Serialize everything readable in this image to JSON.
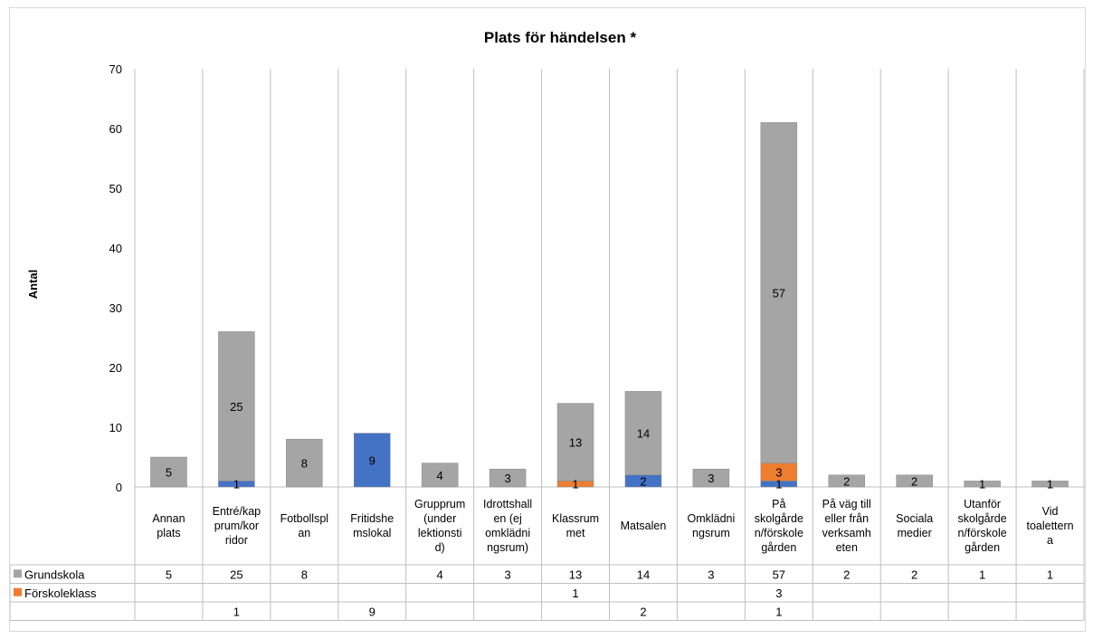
{
  "chart_data": {
    "type": "bar",
    "stacked": true,
    "title": "Plats för händelsen *",
    "ylabel": "Antal",
    "ylim": [
      0,
      70
    ],
    "yticks": [
      0,
      10,
      20,
      30,
      40,
      50,
      60,
      70
    ],
    "grid": "vertical",
    "legend": "data-table",
    "categories": [
      [
        "Annan",
        "plats"
      ],
      [
        "Entré/kap",
        "prum/kor",
        "ridor"
      ],
      [
        "Fotbollspl",
        "an"
      ],
      [
        "Fritidshe",
        "mslokal"
      ],
      [
        "Grupprum",
        "(under",
        "lektionsti",
        "d)"
      ],
      [
        "Idrottshall",
        "en (ej",
        "omklädni",
        "ngsrum)"
      ],
      [
        "Klassrum",
        "met"
      ],
      [
        "Matsalen"
      ],
      [
        "Omklädni",
        "ngsrum"
      ],
      [
        "På",
        "skolgårde",
        "n/förskole",
        "gården"
      ],
      [
        "På väg till",
        "eller från",
        "verksamh",
        "eten"
      ],
      [
        "Sociala",
        "medier"
      ],
      [
        "Utanför",
        "skolgårde",
        "n/förskole",
        "gården"
      ],
      [
        "Vid",
        "toalettern",
        "a"
      ]
    ],
    "series": [
      {
        "values": [
          null,
          1,
          null,
          9,
          null,
          null,
          null,
          2,
          null,
          1,
          null,
          null,
          null,
          null
        ],
        "color": "#4472c4"
      },
      {
        "name": "Förskoleklass",
        "values": [
          null,
          null,
          null,
          null,
          null,
          null,
          1,
          null,
          null,
          3,
          null,
          null,
          null,
          null
        ],
        "color": "#ed7d31"
      },
      {
        "name": "Grundskola",
        "values": [
          5,
          25,
          8,
          null,
          4,
          3,
          13,
          14,
          3,
          57,
          2,
          2,
          1,
          1
        ],
        "color": "#a5a5a5"
      }
    ],
    "table_rows": [
      {
        "name": "Grundskola",
        "color": "#a5a5a5",
        "series_index": 2
      },
      {
        "name": "Förskoleklass",
        "color": "#ed7d31",
        "series_index": 1
      },
      {
        "name": "",
        "color": "",
        "series_index": 0
      }
    ]
  }
}
